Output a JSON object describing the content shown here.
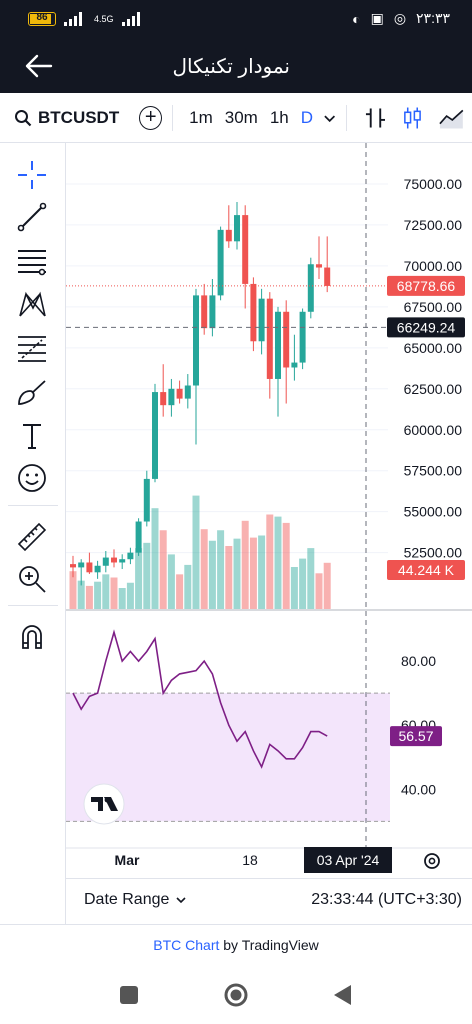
{
  "status": {
    "battery": "86",
    "battery_level": 0.86,
    "network": "4.5G",
    "time": "۲۳:۳۳"
  },
  "header": {
    "title": "نمودار تکنیکال",
    "back_icon": "back-arrow-icon"
  },
  "toolbar": {
    "symbol": "BTCUSDT",
    "timeframes": [
      "1m",
      "30m",
      "1h",
      "D"
    ],
    "active_timeframe": "D"
  },
  "price_axis": {
    "labels": [
      "75000.00",
      "72500.00",
      "70000.00",
      "67500.00",
      "65000.00",
      "62500.00",
      "60000.00",
      "57500.00",
      "55000.00",
      "52500.00"
    ],
    "last_price": "68778.66",
    "cursor_price": "66249.24",
    "volume_label": "44.244 K"
  },
  "rsi": {
    "labels": [
      "80.00",
      "60.00",
      "40.00"
    ],
    "value": "56.57",
    "band_upper": 70,
    "band_lower": 30
  },
  "time_axis": {
    "labels": [
      "Mar",
      "18"
    ],
    "cursor_date": "03 Apr '24"
  },
  "bottom": {
    "date_range_label": "Date Range",
    "clock": "23:33:44 (UTC+3:30)"
  },
  "footer": {
    "link_text": "BTC Chart",
    "by_text": " by TradingView"
  },
  "colors": {
    "up": "#26a69a",
    "down": "#ef5350",
    "rsi_line": "#7e1f86",
    "rsi_band": "#f3e5fb",
    "accent": "#2962ff"
  },
  "chart_data": {
    "type": "candlestick",
    "symbol": "BTCUSDT",
    "interval": "D",
    "ylim": [
      49000,
      77500
    ],
    "candles": [
      {
        "o": 51800,
        "h": 52300,
        "l": 51000,
        "c": 51600
      },
      {
        "o": 51600,
        "h": 52100,
        "l": 50500,
        "c": 51900
      },
      {
        "o": 51900,
        "h": 52500,
        "l": 51200,
        "c": 51300
      },
      {
        "o": 51300,
        "h": 52000,
        "l": 50900,
        "c": 51700
      },
      {
        "o": 51700,
        "h": 52600,
        "l": 51300,
        "c": 52200
      },
      {
        "o": 52200,
        "h": 52700,
        "l": 51600,
        "c": 51900
      },
      {
        "o": 51900,
        "h": 52400,
        "l": 51500,
        "c": 52100
      },
      {
        "o": 52100,
        "h": 52800,
        "l": 51800,
        "c": 52500
      },
      {
        "o": 52500,
        "h": 54600,
        "l": 52300,
        "c": 54400
      },
      {
        "o": 54400,
        "h": 57500,
        "l": 54100,
        "c": 57000
      },
      {
        "o": 57000,
        "h": 62800,
        "l": 56800,
        "c": 62300
      },
      {
        "o": 62300,
        "h": 64000,
        "l": 60800,
        "c": 61500
      },
      {
        "o": 61500,
        "h": 63100,
        "l": 60800,
        "c": 62500
      },
      {
        "o": 62500,
        "h": 63000,
        "l": 61600,
        "c": 61900
      },
      {
        "o": 61900,
        "h": 63400,
        "l": 61300,
        "c": 62700
      },
      {
        "o": 62700,
        "h": 68600,
        "l": 59100,
        "c": 68200
      },
      {
        "o": 68200,
        "h": 68900,
        "l": 65800,
        "c": 66200
      },
      {
        "o": 66200,
        "h": 69200,
        "l": 65700,
        "c": 68200
      },
      {
        "o": 68200,
        "h": 72400,
        "l": 67900,
        "c": 72200
      },
      {
        "o": 72200,
        "h": 73700,
        "l": 71100,
        "c": 71500
      },
      {
        "o": 71500,
        "h": 73900,
        "l": 71000,
        "c": 73100
      },
      {
        "o": 73100,
        "h": 73700,
        "l": 67400,
        "c": 68900
      },
      {
        "o": 68900,
        "h": 69300,
        "l": 64800,
        "c": 65400
      },
      {
        "o": 65400,
        "h": 68600,
        "l": 64600,
        "c": 68000
      },
      {
        "o": 68000,
        "h": 68400,
        "l": 61900,
        "c": 63100
      },
      {
        "o": 63100,
        "h": 67500,
        "l": 60800,
        "c": 67200
      },
      {
        "o": 67200,
        "h": 67900,
        "l": 61600,
        "c": 63800
      },
      {
        "o": 63800,
        "h": 65800,
        "l": 63000,
        "c": 64100
      },
      {
        "o": 64100,
        "h": 67400,
        "l": 63700,
        "c": 67200
      },
      {
        "o": 67200,
        "h": 70500,
        "l": 66800,
        "c": 70100
      },
      {
        "o": 70100,
        "h": 71800,
        "l": 69200,
        "c": 69900
      },
      {
        "o": 69900,
        "h": 71800,
        "l": 68400,
        "c": 68778
      }
    ],
    "volume": [
      {
        "v": 36,
        "up": false
      },
      {
        "v": 27,
        "up": true
      },
      {
        "v": 22,
        "up": false
      },
      {
        "v": 26,
        "up": true
      },
      {
        "v": 33,
        "up": true
      },
      {
        "v": 30,
        "up": false
      },
      {
        "v": 20,
        "up": true
      },
      {
        "v": 25,
        "up": true
      },
      {
        "v": 58,
        "up": true
      },
      {
        "v": 63,
        "up": true
      },
      {
        "v": 96,
        "up": true
      },
      {
        "v": 75,
        "up": false
      },
      {
        "v": 52,
        "up": true
      },
      {
        "v": 33,
        "up": false
      },
      {
        "v": 42,
        "up": true
      },
      {
        "v": 108,
        "up": true
      },
      {
        "v": 76,
        "up": false
      },
      {
        "v": 65,
        "up": true
      },
      {
        "v": 75,
        "up": true
      },
      {
        "v": 60,
        "up": false
      },
      {
        "v": 67,
        "up": true
      },
      {
        "v": 84,
        "up": false
      },
      {
        "v": 68,
        "up": false
      },
      {
        "v": 70,
        "up": true
      },
      {
        "v": 90,
        "up": false
      },
      {
        "v": 88,
        "up": true
      },
      {
        "v": 82,
        "up": false
      },
      {
        "v": 40,
        "up": true
      },
      {
        "v": 48,
        "up": true
      },
      {
        "v": 58,
        "up": true
      },
      {
        "v": 34,
        "up": false
      },
      {
        "v": 44,
        "up": false
      }
    ],
    "rsi_ylim": [
      22,
      95
    ],
    "rsi_values": [
      70,
      65,
      69,
      70,
      80,
      89,
      80,
      83,
      80,
      83,
      87,
      70,
      74,
      76,
      76.5,
      77,
      80,
      76,
      67,
      60,
      55,
      58,
      52,
      47,
      54,
      52,
      49.5,
      49.5,
      53,
      58,
      58,
      56.6
    ]
  }
}
